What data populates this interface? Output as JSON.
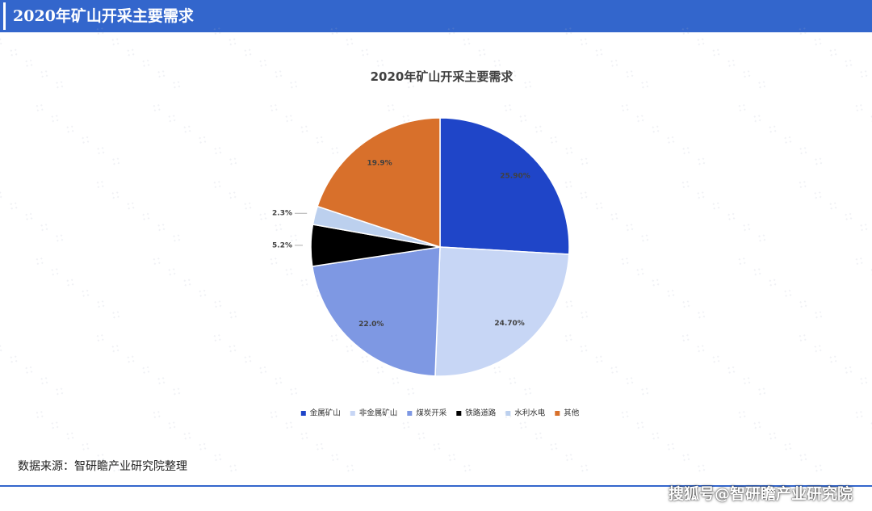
{
  "header": {
    "title": "2020年矿山开采主要需求"
  },
  "colors": {
    "header_bg": "#3366cc",
    "header_text": "#ffffff"
  },
  "chart_data": {
    "type": "pie",
    "title": "2020年矿山开采主要需求",
    "legend_position": "bottom",
    "slices": [
      {
        "label": "金属矿山",
        "value": 25.9,
        "display": "25.90%",
        "color": "#1f45c8"
      },
      {
        "label": "非金属矿山",
        "value": 24.7,
        "display": "24.70%",
        "color": "#c7d6f5"
      },
      {
        "label": "煤炭开采",
        "value": 22.0,
        "display": "22.0%",
        "color": "#7e98e3"
      },
      {
        "label": "铁路道路",
        "value": 5.2,
        "display": "5.2%",
        "color": "#000000"
      },
      {
        "label": "水利水电",
        "value": 2.3,
        "display": "2.3%",
        "color": "#bcd0ee"
      },
      {
        "label": "其他",
        "value": 19.9,
        "display": "19.9%",
        "color": "#d8702b"
      }
    ]
  },
  "footer": {
    "source": "数据来源：智研瞻产业研究院整理",
    "credit": "搜狐号@智研瞻产业研究院"
  }
}
